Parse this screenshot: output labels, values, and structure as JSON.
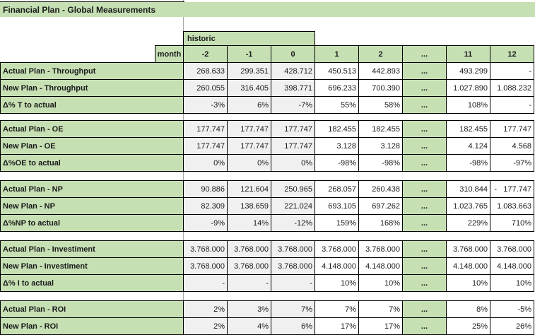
{
  "title": "Financial Plan - Global Measurements",
  "colors": {
    "accent_green": "#c6e0b4",
    "historic_gray": "#f0f0f0",
    "border_black": "#000000",
    "gridline_gray": "#a8a8a8"
  },
  "header": {
    "group_label": "historic",
    "month_label": "month",
    "months": [
      "-2",
      "-1",
      "0",
      "1",
      "2",
      "...",
      "11",
      "12"
    ]
  },
  "blocks": [
    {
      "rows": [
        {
          "label": "Actual Plan - Throughput",
          "values": [
            "268.633",
            "299.351",
            "428.712",
            "450.513",
            "442.893",
            "...",
            "493.299",
            "-"
          ]
        },
        {
          "label": "New Plan - Throughput",
          "values": [
            "260.055",
            "316.405",
            "398.771",
            "696.233",
            "700.390",
            "...",
            "1.027.890",
            "1.088.232"
          ]
        },
        {
          "label": "Δ% T to actual",
          "values": [
            "-3%",
            "6%",
            "-7%",
            "55%",
            "58%",
            "...",
            "108%",
            "-"
          ]
        }
      ]
    },
    {
      "rows": [
        {
          "label": "Actual Plan - OE",
          "values": [
            "177.747",
            "177.747",
            "177.747",
            "182.455",
            "182.455",
            "...",
            "182.455",
            "177.747"
          ]
        },
        {
          "label": "New Plan - OE",
          "values": [
            "177.747",
            "177.747",
            "177.747",
            "3.128",
            "3.128",
            "...",
            "4.124",
            "4.568"
          ]
        },
        {
          "label": "Δ%OE to actual",
          "values": [
            "0%",
            "0%",
            "0%",
            "-98%",
            "-98%",
            "...",
            "-98%",
            "-97%"
          ]
        }
      ]
    },
    {
      "rows": [
        {
          "label": "Actual Plan - NP",
          "values": [
            "90.886",
            "121.604",
            "250.965",
            "268.057",
            "260.438",
            "...",
            "310.844",
            "-   177.747"
          ]
        },
        {
          "label": "New Plan - NP",
          "values": [
            "82.309",
            "138.659",
            "221.024",
            "693.105",
            "697.262",
            "...",
            "1.023.765",
            "1.083.663"
          ]
        },
        {
          "label": "Δ%NP to actual",
          "values": [
            "-9%",
            "14%",
            "-12%",
            "159%",
            "168%",
            "...",
            "229%",
            "710%"
          ]
        }
      ]
    },
    {
      "rows": [
        {
          "label": "Actual Plan - Investiment",
          "values": [
            "3.768.000",
            "3.768.000",
            "3.768.000",
            "3.768.000",
            "3.768.000",
            "...",
            "3.768.000",
            "3.768.000"
          ]
        },
        {
          "label": "New Plan - Investiment",
          "values": [
            "3.768.000",
            "3.768.000",
            "3.768.000",
            "4.148.000",
            "4.148.000",
            "...",
            "4.148.000",
            "4.148.000"
          ]
        },
        {
          "label": "Δ% I to actual",
          "values": [
            "-",
            "-",
            "-",
            "10%",
            "10%",
            "...",
            "10%",
            "10%"
          ]
        }
      ]
    },
    {
      "rows": [
        {
          "label": "Actual Plan - ROI",
          "values": [
            "2%",
            "3%",
            "7%",
            "7%",
            "7%",
            "...",
            "8%",
            "-5%"
          ]
        },
        {
          "label": "New Plan - ROI",
          "values": [
            "2%",
            "4%",
            "6%",
            "17%",
            "17%",
            "...",
            "25%",
            "26%"
          ]
        }
      ]
    }
  ]
}
